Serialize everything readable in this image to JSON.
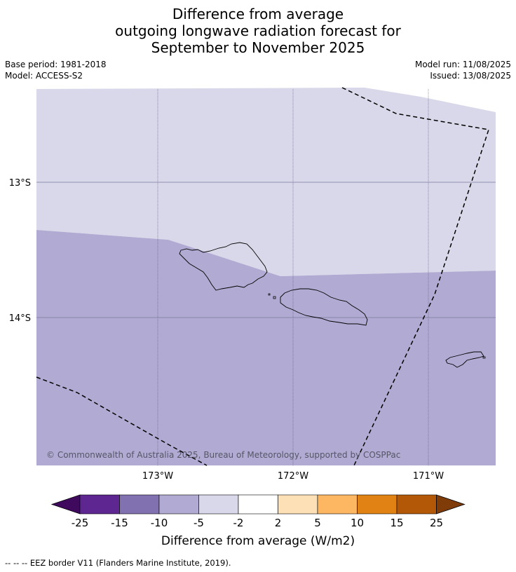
{
  "title": {
    "line1": "Difference from average",
    "line2": "outgoing longwave radiation forecast for",
    "line3": "September to November 2025"
  },
  "meta": {
    "base_period": "Base period: 1981-2018",
    "model": "Model: ACCESS-S2",
    "model_run": "Model run: 11/08/2025",
    "issued": "Issued: 13/08/2025"
  },
  "map": {
    "lat_labels": [
      "13°S",
      "14°S"
    ],
    "lon_labels": [
      "173°W",
      "172°W",
      "171°W"
    ],
    "copyright": "© Commonwealth of Australia 2025, Bureau of Meteorology, supported by COSPPac",
    "colors": {
      "class_-5_-2": "#d8d8ea",
      "class_-10_-5": "#b1abd3",
      "grid": "#555577",
      "coast": "#000000",
      "eez": "#000000"
    }
  },
  "colorbar": {
    "ticks": [
      "-25",
      "-15",
      "-10",
      "-5",
      "-2",
      "2",
      "5",
      "10",
      "15",
      "25"
    ],
    "colors": [
      "#3f0a5e",
      "#5d2690",
      "#8171b1",
      "#b1abd3",
      "#d8d8ea",
      "#ffffff",
      "#fde0b6",
      "#fdb763",
      "#e08214",
      "#b35806",
      "#7f3b08"
    ],
    "label": "Difference from average (W/m2)"
  },
  "footer": "--  --  -- EEZ border V11 (Flanders Marine Institute, 2019)."
}
